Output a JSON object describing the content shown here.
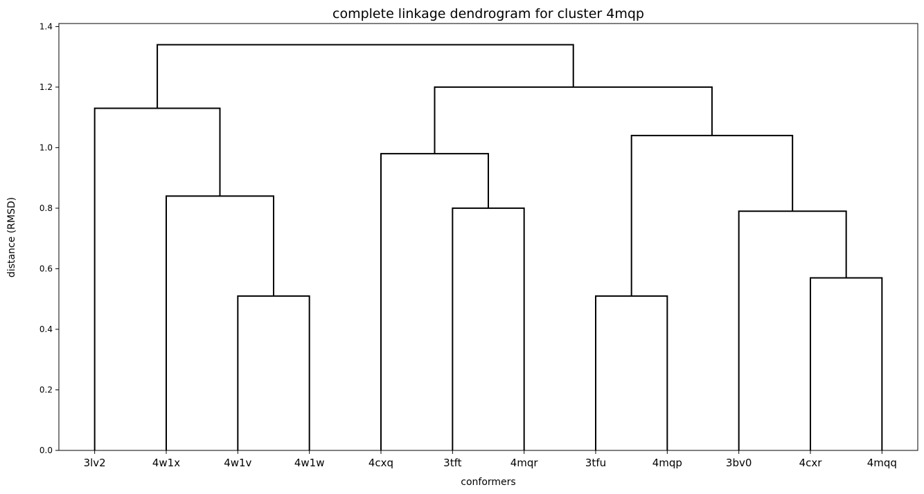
{
  "chart_data": {
    "type": "dendrogram",
    "title": "complete linkage dendrogram for cluster 4mqp",
    "xlabel": "conformers",
    "ylabel": "distance (RMSD)",
    "ylim": [
      0,
      1.41
    ],
    "yticks": [
      0.0,
      0.2,
      0.4,
      0.6,
      0.8,
      1.0,
      1.2,
      1.4
    ],
    "ytick_labels": [
      "0.0",
      "0.2",
      "0.4",
      "0.6",
      "0.8",
      "1.0",
      "1.2",
      "1.4"
    ],
    "leaves": [
      "3lv2",
      "4w1x",
      "4w1v",
      "4w1w",
      "4cxq",
      "3tft",
      "4mqr",
      "3tfu",
      "4mqp",
      "3bv0",
      "4cxr",
      "4mqq"
    ],
    "merges": [
      {
        "left": "4w1v",
        "right": "4w1w",
        "height": 0.51
      },
      {
        "left": "4w1x",
        "right": "m0",
        "height": 0.84
      },
      {
        "left": "3lv2",
        "right": "m1",
        "height": 1.13
      },
      {
        "left": "3tft",
        "right": "4mqr",
        "height": 0.8
      },
      {
        "left": "4cxq",
        "right": "m3",
        "height": 0.98
      },
      {
        "left": "3tfu",
        "right": "4mqp",
        "height": 0.51
      },
      {
        "left": "4cxr",
        "right": "4mqq",
        "height": 0.57
      },
      {
        "left": "3bv0",
        "right": "m6",
        "height": 0.79
      },
      {
        "left": "m5",
        "right": "m7",
        "height": 1.04
      },
      {
        "left": "m4",
        "right": "m8",
        "height": 1.2
      },
      {
        "left": "m2",
        "right": "m9",
        "height": 1.34
      }
    ],
    "line_color": "#000000",
    "grid": false,
    "legend": "none"
  }
}
